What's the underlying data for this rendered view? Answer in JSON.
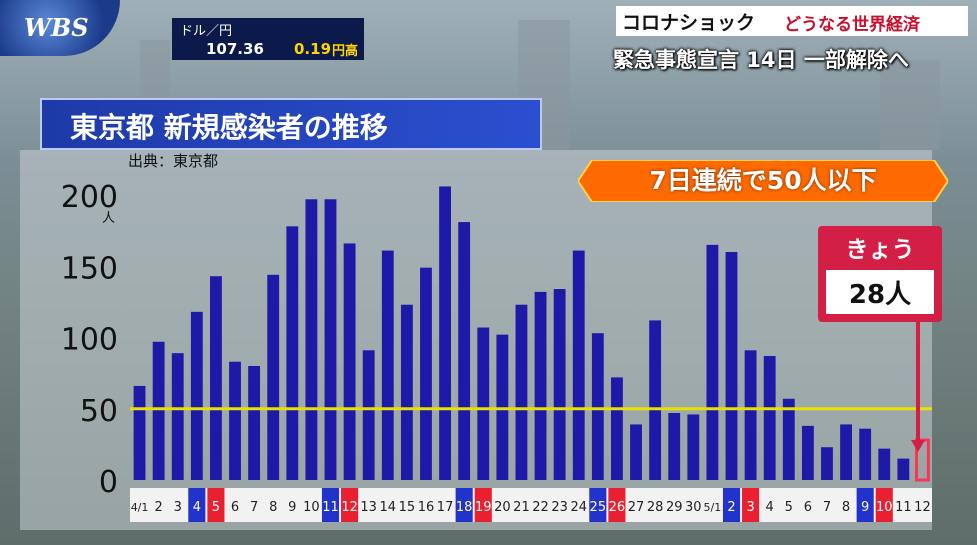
{
  "logo": "WBS",
  "fx": {
    "label": "ドル／円",
    "rate": "107.36",
    "change": "0.19",
    "direction": "円高"
  },
  "headline": {
    "series": "コロナショック",
    "subtitle": "どうなる世界経済",
    "main": "緊急事態宣言 14日 一部解除へ"
  },
  "title": "東京都 新規感染者の推移",
  "source": "出典：東京都",
  "banner": "7日連続で50人以下",
  "callout": {
    "label": "きょう",
    "value": "28人"
  },
  "colors": {
    "bar": "#1c1aa6",
    "today_bar": "#ff3355",
    "threshold_line": "#e8e000",
    "tick_weekend_sat": "#2233cc",
    "tick_weekend_sun": "#e82030",
    "title_bg": "#2b4fd0",
    "banner": "#ff6a00"
  },
  "chart_data": {
    "type": "bar",
    "title": "東京都 新規感染者の推移",
    "ylabel": "人",
    "ylim": [
      0,
      200
    ],
    "yticks": [
      0,
      50,
      100,
      150,
      200
    ],
    "threshold": 50,
    "categories": [
      "4/1",
      "2",
      "3",
      "4",
      "5",
      "6",
      "7",
      "8",
      "9",
      "10",
      "11",
      "12",
      "13",
      "14",
      "15",
      "16",
      "17",
      "18",
      "19",
      "20",
      "21",
      "22",
      "23",
      "24",
      "25",
      "26",
      "27",
      "28",
      "29",
      "30",
      "5/1",
      "2",
      "3",
      "4",
      "5",
      "6",
      "7",
      "8",
      "9",
      "10",
      "11",
      "12"
    ],
    "values": [
      66,
      97,
      89,
      118,
      143,
      83,
      80,
      144,
      178,
      197,
      197,
      166,
      91,
      161,
      123,
      149,
      206,
      181,
      107,
      102,
      123,
      132,
      134,
      161,
      103,
      72,
      39,
      112,
      47,
      46,
      165,
      160,
      91,
      87,
      57,
      38,
      23,
      39,
      36,
      22,
      15,
      28
    ],
    "tick_styles": [
      "plain",
      "plain",
      "plain",
      "sat",
      "sun",
      "plain",
      "plain",
      "plain",
      "plain",
      "plain",
      "sat",
      "sun",
      "plain",
      "plain",
      "plain",
      "plain",
      "plain",
      "sat",
      "sun",
      "plain",
      "plain",
      "plain",
      "plain",
      "plain",
      "sat",
      "sun",
      "plain",
      "plain",
      "plain",
      "plain",
      "plain",
      "sat",
      "sun",
      "plain",
      "plain",
      "plain",
      "plain",
      "plain",
      "sat",
      "sun",
      "plain",
      "plain"
    ],
    "highlight_index": 41
  }
}
